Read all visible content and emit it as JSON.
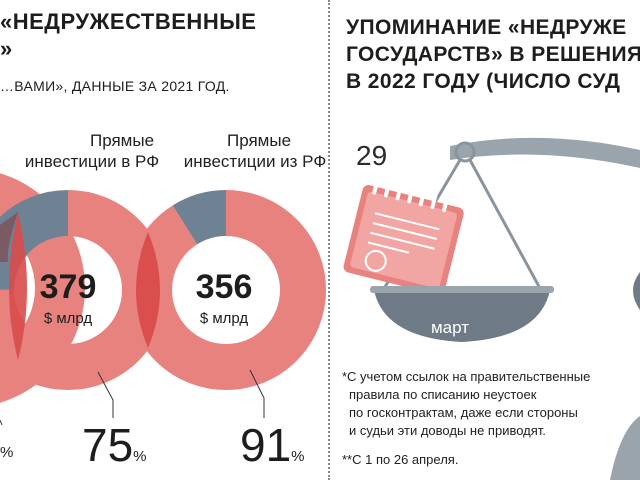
{
  "left": {
    "title_line1": "«НЕДРУЖЕСТВЕННЫЕ",
    "title_line2": "»",
    "subtitle": "…ВАМИ», ДАННЫЕ ЗА 2021 ГОД.",
    "left_pct_fragment": "%"
  },
  "right": {
    "title_lines": [
      "УПОМИНАНИЕ «НЕДРУЖЕ",
      "ГОСУДАРСТВ» В РЕШЕНИЯ",
      "В 2022 ГОДУ (ЧИСЛО СУД"
    ],
    "scale_value": "29",
    "scale_month": "март",
    "note1_lines": [
      "*С учетом ссылок на правительственные",
      "правила по списанию неустоек",
      "по госконтрактам, даже если стороны",
      "и судьи эти доводы не приводят."
    ],
    "note2": "**С 1 по 26 апреля."
  },
  "colors": {
    "pink": "#e8827f",
    "pink_light": "#f2b4b1",
    "red_overlap": "#d94b4b",
    "slate": "#6e8294",
    "dark_overlap": "#7a5a63",
    "scale_gray": "#9aa4ad",
    "scale_dark": "#6e7a86"
  },
  "chart_data": [
    {
      "type": "pie",
      "title": "Прямые инвестиции в РФ",
      "total": "379",
      "unit": "$ млрд",
      "slices": [
        {
          "label": "75%",
          "value": 75,
          "color": "#e8827f"
        },
        {
          "label": "",
          "value": 25,
          "color": "#6e8294"
        }
      ],
      "label_line1": "Прямые",
      "label_line2": "инвестиции в РФ",
      "pct_value": "75",
      "pct_sign": "%"
    },
    {
      "type": "pie",
      "title": "Прямые инвестиции из РФ",
      "total": "356",
      "unit": "$ млрд",
      "slices": [
        {
          "label": "91%",
          "value": 91,
          "color": "#e8827f"
        },
        {
          "label": "",
          "value": 9,
          "color": "#6e8294"
        }
      ],
      "label_line1": "Прямые",
      "label_line2": "инвестиции из РФ",
      "pct_value": "91",
      "pct_sign": "%"
    }
  ]
}
